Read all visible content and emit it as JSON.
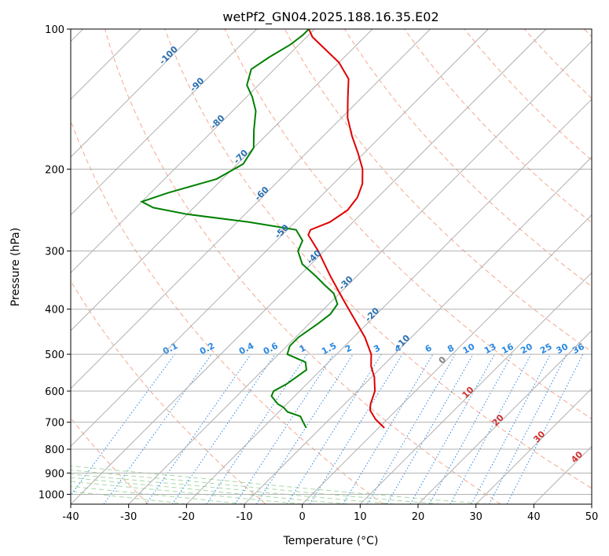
{
  "chart_data": {
    "type": "line",
    "title": "wetPf2_GN04.2025.188.16.35.E02",
    "xlabel": "Temperature (°C)",
    "ylabel": "Pressure (hPa)",
    "xlim": [
      -40,
      50
    ],
    "ylim": [
      1050,
      100
    ],
    "y_scale": "log",
    "grid": true,
    "x_ticks": [
      -40,
      -30,
      -20,
      -10,
      0,
      10,
      20,
      30,
      40,
      50
    ],
    "y_ticks": [
      100,
      200,
      300,
      400,
      500,
      600,
      700,
      800,
      900,
      1000
    ],
    "skew_lines": {
      "temperatures": [
        -130,
        -120,
        -110,
        -100,
        -90,
        -80,
        -70,
        -60,
        -50,
        -40,
        -30,
        -20,
        -10,
        0,
        10,
        20,
        30,
        40,
        50
      ],
      "labels": [
        {
          "text": "-100",
          "t": -100,
          "p": 115
        },
        {
          "text": "-90",
          "t": -90,
          "p": 133
        },
        {
          "text": "-80",
          "t": -80,
          "p": 160
        },
        {
          "text": "-70",
          "t": -70,
          "p": 190
        },
        {
          "text": "-60",
          "t": -60,
          "p": 228
        },
        {
          "text": "-50",
          "t": -50,
          "p": 275
        },
        {
          "text": "-40",
          "t": -40,
          "p": 312
        },
        {
          "text": "-30",
          "t": -30,
          "p": 355
        },
        {
          "text": "-20",
          "t": -20,
          "p": 415
        },
        {
          "text": "-10",
          "t": -10,
          "p": 475
        }
      ]
    },
    "dry_adiabats": [
      -30,
      -10,
      10,
      30,
      50,
      70,
      90,
      110,
      130,
      150,
      170,
      190,
      210,
      230,
      250,
      270
    ],
    "moist_adiabats": [
      -20,
      -10,
      0,
      8,
      16,
      24,
      32
    ],
    "mixing_ratio_lines": {
      "values": [
        0.1,
        0.2,
        0.4,
        0.6,
        1,
        1.5,
        2,
        3,
        4,
        6,
        8,
        10,
        13,
        16,
        20,
        25,
        30,
        36
      ],
      "labels": [
        "0.1",
        "0.2",
        "0.4",
        "0.6",
        "1",
        "1.5",
        "2",
        "3",
        "4",
        "6",
        "8",
        "10",
        "13",
        "16",
        "20",
        "25",
        "30",
        "36"
      ]
    },
    "temperature_labels": [
      {
        "text": "0",
        "t": 0,
        "p": 520
      },
      {
        "text": "10",
        "t": 10,
        "p": 610
      },
      {
        "text": "20",
        "t": 20,
        "p": 700
      },
      {
        "text": "30",
        "t": 30,
        "p": 760
      },
      {
        "text": "40",
        "t": 40,
        "p": 840
      }
    ],
    "series": [
      {
        "color": "#e00000",
        "values": [
          {
            "p": 720,
            "t": 1.0
          },
          {
            "p": 690,
            "t": -2.0
          },
          {
            "p": 660,
            "t": -4.5
          },
          {
            "p": 640,
            "t": -5.5
          },
          {
            "p": 600,
            "t": -7.0
          },
          {
            "p": 560,
            "t": -9.5
          },
          {
            "p": 530,
            "t": -12.0
          },
          {
            "p": 500,
            "t": -14.0
          },
          {
            "p": 460,
            "t": -18.0
          },
          {
            "p": 420,
            "t": -23.0
          },
          {
            "p": 380,
            "t": -28.5
          },
          {
            "p": 340,
            "t": -34.5
          },
          {
            "p": 300,
            "t": -41.0
          },
          {
            "p": 277,
            "t": -45.5
          },
          {
            "p": 270,
            "t": -46.0
          },
          {
            "p": 260,
            "t": -44.0
          },
          {
            "p": 245,
            "t": -43.0
          },
          {
            "p": 230,
            "t": -43.5
          },
          {
            "p": 215,
            "t": -45.0
          },
          {
            "p": 200,
            "t": -47.5
          },
          {
            "p": 185,
            "t": -51.0
          },
          {
            "p": 170,
            "t": -55.0
          },
          {
            "p": 155,
            "t": -59.0
          },
          {
            "p": 140,
            "t": -62.5
          },
          {
            "p": 128,
            "t": -65.5
          },
          {
            "p": 118,
            "t": -70.0
          },
          {
            "p": 110,
            "t": -75.0
          },
          {
            "p": 104,
            "t": -79.0
          },
          {
            "p": 100,
            "t": -81.0
          }
        ]
      },
      {
        "color": "#008000",
        "values": [
          {
            "p": 720,
            "t": -12.5
          },
          {
            "p": 700,
            "t": -14.0
          },
          {
            "p": 680,
            "t": -15.5
          },
          {
            "p": 665,
            "t": -18.5
          },
          {
            "p": 650,
            "t": -20.0
          },
          {
            "p": 640,
            "t": -21.5
          },
          {
            "p": 615,
            "t": -24.0
          },
          {
            "p": 600,
            "t": -24.5
          },
          {
            "p": 580,
            "t": -23.5
          },
          {
            "p": 560,
            "t": -23.0
          },
          {
            "p": 540,
            "t": -22.5
          },
          {
            "p": 520,
            "t": -24.0
          },
          {
            "p": 500,
            "t": -28.5
          },
          {
            "p": 480,
            "t": -29.5
          },
          {
            "p": 460,
            "t": -29.5
          },
          {
            "p": 430,
            "t": -28.5
          },
          {
            "p": 410,
            "t": -28.0
          },
          {
            "p": 390,
            "t": -28.5
          },
          {
            "p": 370,
            "t": -31.0
          },
          {
            "p": 355,
            "t": -34.0
          },
          {
            "p": 340,
            "t": -37.0
          },
          {
            "p": 320,
            "t": -41.5
          },
          {
            "p": 300,
            "t": -44.5
          },
          {
            "p": 285,
            "t": -45.5
          },
          {
            "p": 270,
            "t": -48.5
          },
          {
            "p": 260,
            "t": -58.0
          },
          {
            "p": 250,
            "t": -70.0
          },
          {
            "p": 242,
            "t": -77.0
          },
          {
            "p": 235,
            "t": -80.0
          },
          {
            "p": 225,
            "t": -77.0
          },
          {
            "p": 210,
            "t": -71.0
          },
          {
            "p": 195,
            "t": -69.0
          },
          {
            "p": 180,
            "t": -70.0
          },
          {
            "p": 165,
            "t": -73.0
          },
          {
            "p": 150,
            "t": -76.0
          },
          {
            "p": 140,
            "t": -79.0
          },
          {
            "p": 132,
            "t": -82.0
          },
          {
            "p": 122,
            "t": -84.0
          },
          {
            "p": 115,
            "t": -83.0
          },
          {
            "p": 108,
            "t": -81.5
          },
          {
            "p": 103,
            "t": -81.0
          },
          {
            "p": 100,
            "t": -81.0
          }
        ]
      }
    ]
  }
}
